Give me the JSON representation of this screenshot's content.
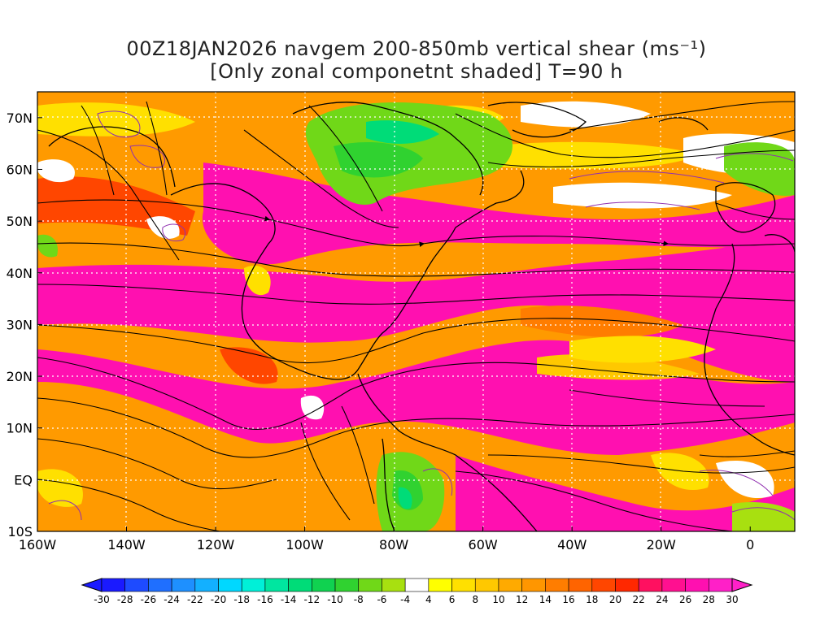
{
  "title": {
    "line1": "00Z18JAN2026 navgem 200-850mb vertical shear (ms⁻¹)",
    "line2": "[Only zonal componetnt shaded] T=90 h"
  },
  "axes": {
    "lat_labels": [
      "70N",
      "60N",
      "50N",
      "40N",
      "30N",
      "20N",
      "10N",
      "EQ",
      "10S"
    ],
    "lat_values": [
      70,
      60,
      50,
      40,
      30,
      20,
      10,
      0,
      -10
    ],
    "lon_labels": [
      "160W",
      "140W",
      "120W",
      "100W",
      "80W",
      "60W",
      "40W",
      "20W",
      "0"
    ],
    "lon_values": [
      -160,
      -140,
      -120,
      -100,
      -80,
      -60,
      -40,
      -20,
      0
    ],
    "lon_range": [
      -160,
      10
    ],
    "lat_range": [
      -10,
      75
    ]
  },
  "colorbar": {
    "labels": [
      "-30",
      "-28",
      "-26",
      "-24",
      "-22",
      "-20",
      "-18",
      "-16",
      "-14",
      "-12",
      "-10",
      "-8",
      "-6",
      "-4",
      "4",
      "6",
      "8",
      "10",
      "12",
      "14",
      "16",
      "18",
      "20",
      "22",
      "24",
      "26",
      "28",
      "30"
    ],
    "colors": [
      "#1a1aff",
      "#1e4bff",
      "#1f6fff",
      "#1e90ff",
      "#13b0ff",
      "#00d8ff",
      "#00f0d8",
      "#00e6a0",
      "#00dc78",
      "#10d250",
      "#30d230",
      "#70d818",
      "#a8e010",
      "#ffffff",
      "#ffff00",
      "#ffe000",
      "#ffc800",
      "#ffaa00",
      "#ff9600",
      "#ff7d00",
      "#ff6400",
      "#ff4600",
      "#ff2800",
      "#ff1060",
      "#ff1090",
      "#ff10b0",
      "#ff20c8"
    ]
  },
  "legend_text": {
    "units": "ms⁻¹"
  }
}
